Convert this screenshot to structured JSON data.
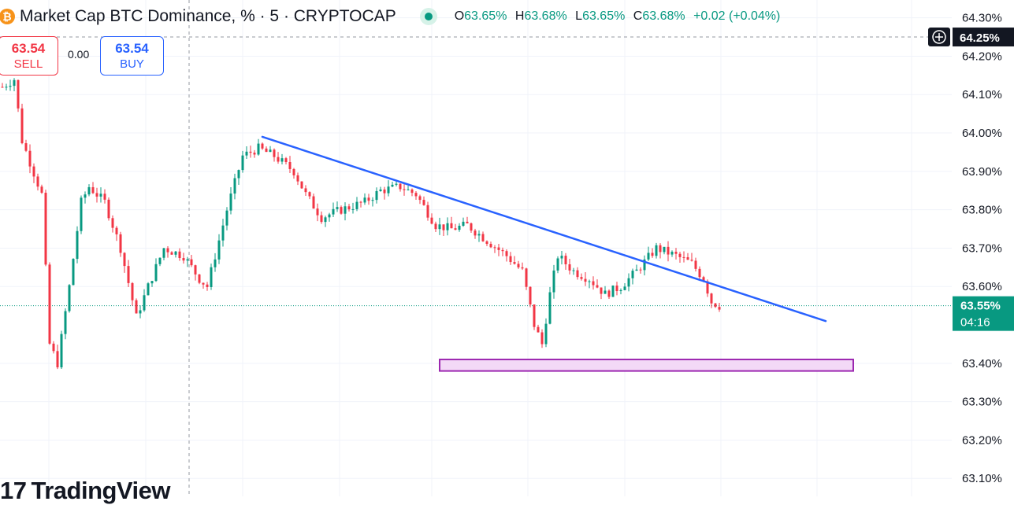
{
  "header": {
    "coin_icon": "bitcoin-icon",
    "title": "Market Cap BTC Dominance, % · 5 · CRYPTOCAP",
    "ohlc": {
      "o_label": "O",
      "o_value": "63.65%",
      "h_label": "H",
      "h_value": "63.68%",
      "l_label": "L",
      "l_value": "63.65%",
      "c_label": "C",
      "c_value": "63.68%",
      "change": "+0.02 (+0.04%)"
    }
  },
  "trade": {
    "sell_price": "63.54",
    "sell_label": "SELL",
    "spread": "0.00",
    "buy_price": "63.54",
    "buy_label": "BUY"
  },
  "logo": {
    "text": "TradingView",
    "icon": "tradingview-logo-icon"
  },
  "colors": {
    "up": "#089981",
    "down": "#f23645",
    "trendline": "#2962ff",
    "zone_border": "#9c27b0",
    "zone_fill": "#f3d9f7"
  },
  "chart_data": {
    "type": "candlestick",
    "ylim": [
      63.08,
      64.33
    ],
    "yticks": [
      "64.30%",
      "64.20%",
      "64.10%",
      "64.00%",
      "63.90%",
      "63.80%",
      "63.70%",
      "63.60%",
      "63.40%",
      "63.30%",
      "63.20%",
      "63.10%"
    ],
    "ytick_values": [
      64.3,
      64.2,
      64.1,
      64.0,
      63.9,
      63.8,
      63.7,
      63.6,
      63.4,
      63.3,
      63.2,
      63.1
    ],
    "crosshair": {
      "value": 64.25,
      "label": "64.25%"
    },
    "last_price": {
      "value": 63.55,
      "label": "63.55%",
      "countdown": "04:16"
    },
    "candle_count": 183,
    "price_path": [
      [
        0,
        64.12
      ],
      [
        3,
        64.14
      ],
      [
        5,
        63.98
      ],
      [
        10,
        63.84
      ],
      [
        12,
        63.45
      ],
      [
        14,
        63.4
      ],
      [
        17,
        63.6
      ],
      [
        20,
        63.82
      ],
      [
        22,
        63.86
      ],
      [
        26,
        63.82
      ],
      [
        30,
        63.7
      ],
      [
        34,
        63.52
      ],
      [
        37,
        63.6
      ],
      [
        41,
        63.7
      ],
      [
        46,
        63.68
      ],
      [
        50,
        63.62
      ],
      [
        52,
        63.6
      ],
      [
        57,
        63.8
      ],
      [
        61,
        63.94
      ],
      [
        65,
        63.96
      ],
      [
        69,
        63.94
      ],
      [
        74,
        63.9
      ],
      [
        77,
        63.84
      ],
      [
        81,
        63.78
      ],
      [
        86,
        63.8
      ],
      [
        92,
        63.82
      ],
      [
        96,
        63.85
      ],
      [
        101,
        63.86
      ],
      [
        105,
        63.84
      ],
      [
        110,
        63.76
      ],
      [
        114,
        63.75
      ],
      [
        118,
        63.76
      ],
      [
        123,
        63.72
      ],
      [
        128,
        63.68
      ],
      [
        132,
        63.64
      ],
      [
        135,
        63.5
      ],
      [
        137,
        63.45
      ],
      [
        139,
        63.58
      ],
      [
        141,
        63.68
      ],
      [
        145,
        63.64
      ],
      [
        149,
        63.62
      ],
      [
        153,
        63.58
      ],
      [
        157,
        63.6
      ],
      [
        161,
        63.64
      ],
      [
        166,
        63.7
      ],
      [
        171,
        63.68
      ],
      [
        175,
        63.66
      ],
      [
        178,
        63.62
      ],
      [
        180,
        63.56
      ],
      [
        182,
        63.55
      ]
    ],
    "trendline": {
      "from": {
        "candle": 66,
        "price": 63.99
      },
      "to": {
        "candle": 209,
        "price": 63.51
      }
    },
    "support_zone": {
      "from_candle": 111,
      "to_candle": 216,
      "top": 63.41,
      "bottom": 63.38
    }
  }
}
